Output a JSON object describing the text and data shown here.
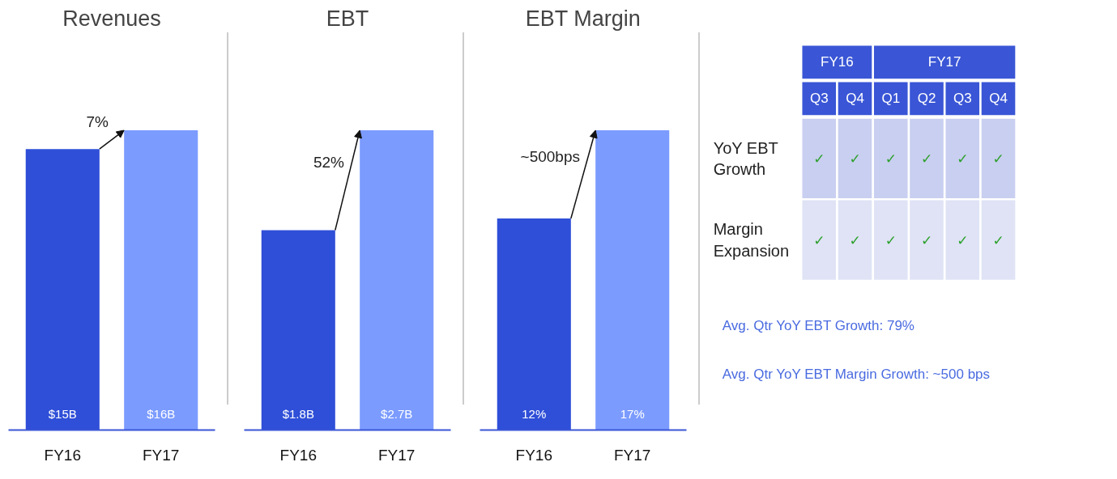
{
  "chart_data": [
    {
      "type": "bar",
      "title": "Revenues",
      "categories": [
        "FY16",
        "FY17"
      ],
      "values": [
        15,
        16
      ],
      "colors": [
        "#2f4fd8",
        "#7b9bff"
      ],
      "value_labels": [
        "$15B",
        "$16B"
      ],
      "annotations": [
        "7%"
      ],
      "tick_labels": "x",
      "grid": false
    },
    {
      "type": "bar",
      "title": "EBT",
      "categories": [
        "FY16",
        "FY17"
      ],
      "values": [
        1.8,
        2.7
      ],
      "colors": [
        "#2f4fd8",
        "#7b9bff"
      ],
      "value_labels": [
        "$1.8B",
        "$2.7B"
      ],
      "annotations": [
        "52%"
      ],
      "tick_labels": "x",
      "grid": false
    },
    {
      "type": "bar",
      "title": "EBT Margin",
      "categories": [
        "FY16",
        "FY17"
      ],
      "values": [
        12,
        17
      ],
      "colors": [
        "#2f4fd8",
        "#7b9bff"
      ],
      "value_labels": [
        "12%",
        "17%"
      ],
      "annotations": [
        "~500bps"
      ],
      "tick_labels": "x",
      "grid": false
    },
    {
      "type": "other",
      "categories": [
        "Q3",
        "Q4",
        "Q1",
        "Q2",
        "Q3",
        "Q4"
      ],
      "y_categories": [
        "YoY EBT Growth",
        "Margin Expansion"
      ],
      "cell_labels": [
        [
          "✓",
          "✓",
          "✓",
          "✓",
          "✓",
          "✓"
        ],
        [
          "✓",
          "✓",
          "✓",
          "✓",
          "✓",
          "✓"
        ]
      ],
      "annotations": [
        "FY16",
        "FY17",
        "Avg. Qtr YoY EBT Growth: 79%",
        "Avg. Qtr YoY EBT Margin Growth: ~500 bps"
      ]
    }
  ]
}
